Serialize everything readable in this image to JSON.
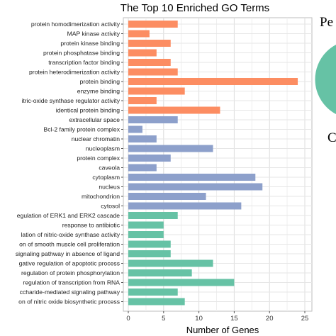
{
  "chart_data": {
    "type": "bar",
    "orientation": "horizontal",
    "title": "The Top 10 Enriched GO Terms",
    "xlabel": "Number of Genes",
    "ylabel": "",
    "xlim": [
      0,
      25
    ],
    "x_ticks": [
      "0",
      "5",
      "10",
      "15",
      "20",
      "25"
    ],
    "grid": true,
    "colors": {
      "group_1": "#fc8d62",
      "group_2": "#8da0cb",
      "group_3": "#66c2a5"
    },
    "categories": [
      "protein homodimerization activity",
      "MAP kinase activity",
      "protein kinase binding",
      "protein phosphatase binding",
      "transcription factor binding",
      "protein heterodimerization activity",
      "protein binding",
      "enzyme binding",
      "itric-oxide synthase regulator activity",
      "identical protein binding",
      "extracellular space",
      "Bcl-2 family protein complex",
      "nuclear chromatin",
      "nucleoplasm",
      "protein complex",
      "caveola",
      "cytoplasm",
      "nucleus",
      "mitochondrion",
      "cytosol",
      "egulation of ERK1 and ERK2 cascade",
      "response to antibiotic",
      "lation of nitric-oxide synthase activity",
      "on of smooth muscle cell proliferation",
      "signaling pathway in absence of ligand",
      "gative regulation of apoptotic process",
      "regulation of protein phosphorylation",
      "regulation of transcription from RNA",
      "ccharide-mediated signaling pathway",
      "on of nitric oxide biosynthetic process"
    ],
    "values": [
      7,
      3,
      6,
      4,
      6,
      7,
      24,
      8,
      4,
      13,
      7,
      2,
      4,
      12,
      6,
      4,
      18,
      19,
      11,
      16,
      7,
      5,
      5,
      6,
      6,
      12,
      9,
      15,
      7,
      8
    ],
    "groups": [
      1,
      1,
      1,
      1,
      1,
      1,
      1,
      1,
      1,
      1,
      2,
      2,
      2,
      2,
      2,
      2,
      2,
      2,
      2,
      2,
      3,
      3,
      3,
      3,
      3,
      3,
      3,
      3,
      3,
      3
    ]
  },
  "edge": {
    "text_top": "Pe",
    "text_bottom": "C",
    "pie_color": "#66c2a5"
  }
}
